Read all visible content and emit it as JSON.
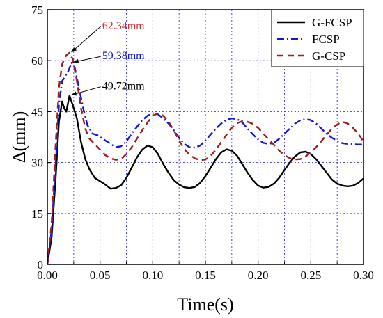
{
  "chart_data": {
    "type": "line",
    "xlabel": "Time(s)",
    "ylabel": "Δ(mm)",
    "xlim": [
      0,
      0.3
    ],
    "ylim": [
      0,
      75
    ],
    "xticks": [
      "0.00",
      "0.05",
      "0.10",
      "0.15",
      "0.20",
      "0.25",
      "0.30"
    ],
    "yticks": [
      "0",
      "15",
      "30",
      "45",
      "60",
      "75"
    ],
    "grid": "dotted blue lines at every x tick (0.025 minor) and y tick",
    "legend_position": "top-right",
    "series": [
      {
        "name": "G-FCSP",
        "color": "#000000",
        "style": "solid",
        "points": [
          [
            0,
            0
          ],
          [
            0.004,
            8
          ],
          [
            0.008,
            26
          ],
          [
            0.011,
            42
          ],
          [
            0.014,
            48
          ],
          [
            0.016,
            46
          ],
          [
            0.018,
            45
          ],
          [
            0.021,
            49.72
          ],
          [
            0.024,
            47
          ],
          [
            0.028,
            43
          ],
          [
            0.032,
            36
          ],
          [
            0.036,
            31
          ],
          [
            0.04,
            28
          ],
          [
            0.045,
            25.5
          ],
          [
            0.05,
            24.5
          ],
          [
            0.055,
            23.5
          ],
          [
            0.06,
            22.3
          ],
          [
            0.065,
            22.5
          ],
          [
            0.07,
            23.3
          ],
          [
            0.075,
            25.5
          ],
          [
            0.08,
            28.5
          ],
          [
            0.085,
            31.5
          ],
          [
            0.09,
            33.8
          ],
          [
            0.095,
            35
          ],
          [
            0.1,
            34.5
          ],
          [
            0.105,
            32.5
          ],
          [
            0.11,
            29.5
          ],
          [
            0.115,
            27
          ],
          [
            0.12,
            24.8
          ],
          [
            0.125,
            23.5
          ],
          [
            0.13,
            22.7
          ],
          [
            0.135,
            22.5
          ],
          [
            0.14,
            22.8
          ],
          [
            0.145,
            24
          ],
          [
            0.15,
            26
          ],
          [
            0.155,
            28.5
          ],
          [
            0.16,
            31
          ],
          [
            0.165,
            33
          ],
          [
            0.17,
            33.9
          ],
          [
            0.175,
            33.5
          ],
          [
            0.18,
            32
          ],
          [
            0.185,
            29.5
          ],
          [
            0.19,
            27
          ],
          [
            0.195,
            24.8
          ],
          [
            0.2,
            23.2
          ],
          [
            0.205,
            22.6
          ],
          [
            0.21,
            22.8
          ],
          [
            0.215,
            23.8
          ],
          [
            0.22,
            25.5
          ],
          [
            0.225,
            27.8
          ],
          [
            0.23,
            30
          ],
          [
            0.235,
            31.8
          ],
          [
            0.24,
            33
          ],
          [
            0.245,
            33.2
          ],
          [
            0.25,
            32.5
          ],
          [
            0.255,
            31
          ],
          [
            0.26,
            29
          ],
          [
            0.265,
            27
          ],
          [
            0.27,
            25
          ],
          [
            0.275,
            23.8
          ],
          [
            0.28,
            23.2
          ],
          [
            0.285,
            23
          ],
          [
            0.29,
            23.2
          ],
          [
            0.295,
            24
          ],
          [
            0.3,
            25.3
          ]
        ]
      },
      {
        "name": "FCSP",
        "color": "#1515e6",
        "style": "dashdot",
        "points": [
          [
            0,
            0
          ],
          [
            0.004,
            10
          ],
          [
            0.008,
            30
          ],
          [
            0.011,
            47
          ],
          [
            0.014,
            54
          ],
          [
            0.017,
            55.5
          ],
          [
            0.02,
            57
          ],
          [
            0.023,
            59.38
          ],
          [
            0.026,
            58
          ],
          [
            0.03,
            52
          ],
          [
            0.034,
            46
          ],
          [
            0.038,
            41
          ],
          [
            0.043,
            38.5
          ],
          [
            0.048,
            38
          ],
          [
            0.055,
            36.5
          ],
          [
            0.06,
            35.5
          ],
          [
            0.065,
            34.5
          ],
          [
            0.07,
            34.8
          ],
          [
            0.075,
            36.2
          ],
          [
            0.08,
            38.5
          ],
          [
            0.085,
            40.5
          ],
          [
            0.09,
            42.5
          ],
          [
            0.095,
            43.8
          ],
          [
            0.1,
            44.5
          ],
          [
            0.105,
            44.2
          ],
          [
            0.11,
            43
          ],
          [
            0.115,
            41.5
          ],
          [
            0.12,
            39.5
          ],
          [
            0.125,
            37.3
          ],
          [
            0.13,
            35.5
          ],
          [
            0.135,
            34.5
          ],
          [
            0.14,
            34.4
          ],
          [
            0.145,
            35
          ],
          [
            0.15,
            36.5
          ],
          [
            0.155,
            38.3
          ],
          [
            0.16,
            40
          ],
          [
            0.165,
            41.5
          ],
          [
            0.17,
            42.6
          ],
          [
            0.175,
            43
          ],
          [
            0.18,
            42.8
          ],
          [
            0.185,
            41.8
          ],
          [
            0.19,
            40
          ],
          [
            0.195,
            38.3
          ],
          [
            0.2,
            36.8
          ],
          [
            0.205,
            35.8
          ],
          [
            0.21,
            35.5
          ],
          [
            0.215,
            35.8
          ],
          [
            0.22,
            37
          ],
          [
            0.225,
            38.5
          ],
          [
            0.23,
            40
          ],
          [
            0.235,
            41.5
          ],
          [
            0.24,
            42.4
          ],
          [
            0.245,
            42.8
          ],
          [
            0.25,
            42.5
          ],
          [
            0.255,
            41.5
          ],
          [
            0.26,
            40
          ],
          [
            0.265,
            38.5
          ],
          [
            0.27,
            37.3
          ],
          [
            0.275,
            36.4
          ],
          [
            0.28,
            35.7
          ],
          [
            0.285,
            35.5
          ],
          [
            0.29,
            35.4
          ],
          [
            0.295,
            35.3
          ],
          [
            0.3,
            35.3
          ]
        ]
      },
      {
        "name": "G-CSP",
        "color": "#a01e1e",
        "style": "dashed",
        "points": [
          [
            0,
            0
          ],
          [
            0.004,
            12
          ],
          [
            0.008,
            36
          ],
          [
            0.011,
            52
          ],
          [
            0.014,
            59
          ],
          [
            0.018,
            61.6
          ],
          [
            0.021,
            62.34
          ],
          [
            0.024,
            60.5
          ],
          [
            0.028,
            54
          ],
          [
            0.032,
            46
          ],
          [
            0.036,
            40
          ],
          [
            0.04,
            37
          ],
          [
            0.045,
            35.5
          ],
          [
            0.05,
            33.8
          ],
          [
            0.055,
            32.2
          ],
          [
            0.06,
            31.2
          ],
          [
            0.065,
            30.8
          ],
          [
            0.07,
            31
          ],
          [
            0.075,
            32.5
          ],
          [
            0.08,
            34.5
          ],
          [
            0.085,
            37
          ],
          [
            0.09,
            39.5
          ],
          [
            0.095,
            41.8
          ],
          [
            0.1,
            43.8
          ],
          [
            0.105,
            44.5
          ],
          [
            0.11,
            43.8
          ],
          [
            0.115,
            42
          ],
          [
            0.12,
            39.5
          ],
          [
            0.125,
            36.5
          ],
          [
            0.13,
            34
          ],
          [
            0.135,
            32.3
          ],
          [
            0.14,
            31.2
          ],
          [
            0.145,
            30.7
          ],
          [
            0.15,
            30.9
          ],
          [
            0.155,
            32
          ],
          [
            0.16,
            33.8
          ],
          [
            0.165,
            36
          ],
          [
            0.17,
            38.2
          ],
          [
            0.175,
            40.2
          ],
          [
            0.18,
            41.6
          ],
          [
            0.185,
            42.2
          ],
          [
            0.19,
            42
          ],
          [
            0.195,
            41.4
          ],
          [
            0.2,
            40.2
          ],
          [
            0.205,
            38.5
          ],
          [
            0.21,
            36.8
          ],
          [
            0.215,
            35.2
          ],
          [
            0.22,
            33.5
          ],
          [
            0.225,
            32.2
          ],
          [
            0.23,
            31.3
          ],
          [
            0.235,
            30.9
          ],
          [
            0.24,
            31
          ],
          [
            0.245,
            31.8
          ],
          [
            0.25,
            33
          ],
          [
            0.255,
            34.5
          ],
          [
            0.26,
            36.3
          ],
          [
            0.265,
            38.2
          ],
          [
            0.27,
            40
          ],
          [
            0.275,
            41.2
          ],
          [
            0.28,
            42
          ],
          [
            0.285,
            41.5
          ],
          [
            0.29,
            40.2
          ],
          [
            0.295,
            38.5
          ],
          [
            0.3,
            36.2
          ]
        ]
      }
    ],
    "annotations": [
      {
        "text": "62.34mm",
        "color": "#d62d2d",
        "point": [
          0.021,
          62.34
        ],
        "label_at": [
          0.052,
          69.3
        ]
      },
      {
        "text": "59.38mm",
        "color": "#1515e6",
        "point": [
          0.023,
          59.38
        ],
        "label_at": [
          0.052,
          60.4
        ]
      },
      {
        "text": "49.72mm",
        "color": "#000000",
        "point": [
          0.021,
          49.72
        ],
        "label_at": [
          0.052,
          51.5
        ]
      }
    ]
  }
}
